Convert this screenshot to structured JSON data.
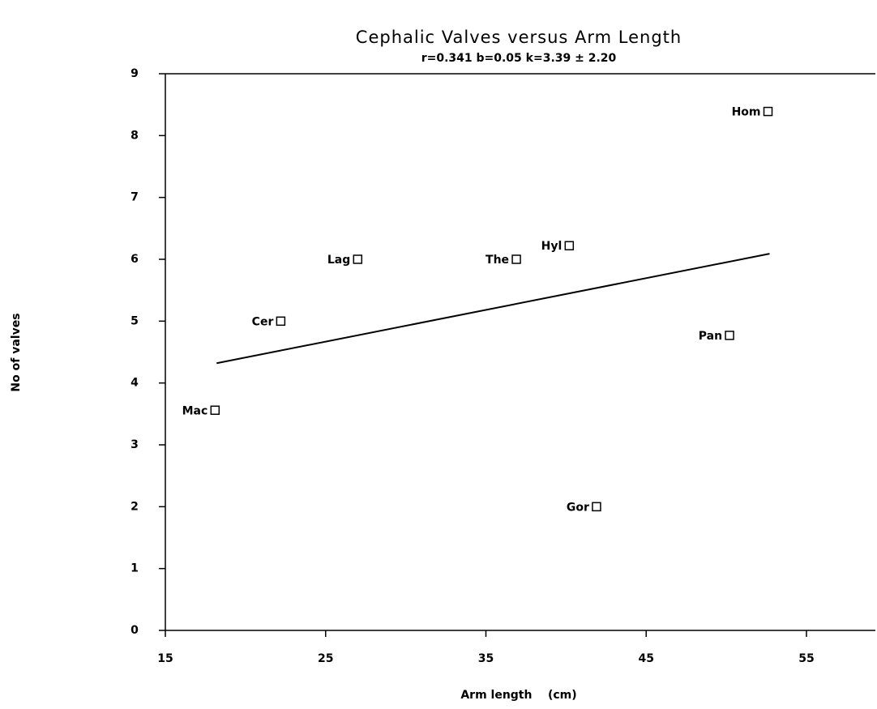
{
  "chart_data": {
    "type": "scatter",
    "title": "Cephalic Valves versus Arm Length",
    "subtitle": "r=0.341   b=0.05   k=3.39 ± 2.20",
    "x_label": "Arm length    (cm)",
    "y_label": "No of valves",
    "labels": [
      "Mac",
      "Cer",
      "Lag",
      "The",
      "Hyl",
      "Gor",
      "Pan",
      "Hom"
    ],
    "x": [
      18.1,
      22.2,
      27.0,
      36.9,
      40.2,
      41.9,
      50.2,
      52.6
    ],
    "values": [
      3.56,
      5.0,
      6.0,
      6.0,
      6.22,
      2.0,
      4.77,
      8.39
    ],
    "fit_line": {
      "x": [
        18.2,
        52.7
      ],
      "y": [
        4.32,
        6.09
      ]
    },
    "color": "#000000",
    "xlim": [
      15,
      59.3
    ],
    "xticks": [
      15,
      25,
      35,
      45,
      55
    ],
    "ylim": [
      0,
      9
    ],
    "yticks": [
      0,
      1,
      2,
      3,
      4,
      5,
      6,
      7,
      8,
      9
    ],
    "grid": false
  }
}
